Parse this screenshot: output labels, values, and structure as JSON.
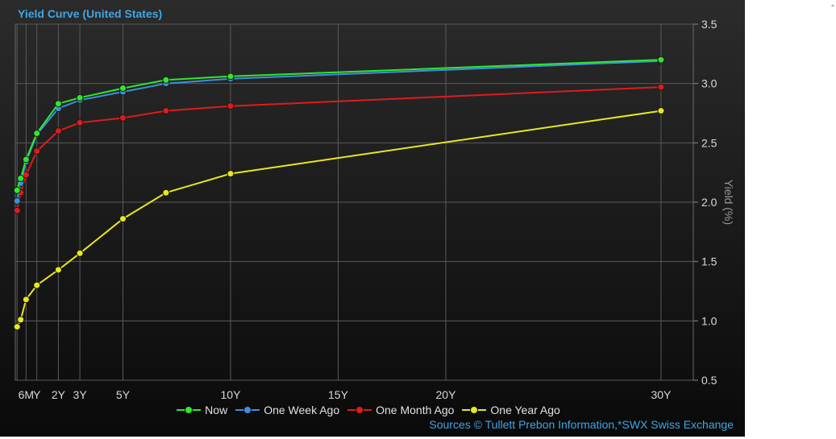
{
  "title": "Yield Curve (United States)",
  "sources": "Sources  © Tullett Prebon Information,*SWX Swiss Exchange",
  "corner_mark": "-",
  "chart_data": {
    "type": "line",
    "title": "Yield Curve (United States)",
    "xlabel": "",
    "ylabel": "Yield (%)",
    "xlim": [
      0,
      31.5
    ],
    "ylim": [
      0.5,
      3.5
    ],
    "x_ticks": [
      {
        "value": 0.5,
        "label": "6M"
      },
      {
        "value": 1,
        "label": "Y"
      },
      {
        "value": 2,
        "label": "2Y"
      },
      {
        "value": 3,
        "label": "3Y"
      },
      {
        "value": 5,
        "label": "5Y"
      },
      {
        "value": 10,
        "label": "10Y"
      },
      {
        "value": 15,
        "label": "15Y"
      },
      {
        "value": 20,
        "label": "20Y"
      },
      {
        "value": 30,
        "label": "30Y"
      }
    ],
    "x_gridlines": [
      0.083,
      0.5,
      1,
      2,
      3,
      5,
      10,
      15,
      20,
      30
    ],
    "y_ticks": [
      0.5,
      1.0,
      1.5,
      2.0,
      2.5,
      3.0,
      3.5
    ],
    "y_tick_labels": [
      "0.5",
      "1.0",
      "1.5",
      "2.0",
      "2.5",
      "3.0",
      "3.5"
    ],
    "grid": true,
    "legend_position": "bottom",
    "x": [
      0.083,
      0.25,
      0.5,
      1,
      2,
      3,
      5,
      7,
      10,
      30
    ],
    "series": [
      {
        "name": "Now",
        "color": "#2ee82e",
        "values": [
          2.1,
          2.2,
          2.36,
          2.58,
          2.83,
          2.88,
          2.96,
          3.03,
          3.06,
          3.2
        ]
      },
      {
        "name": "One Week Ago",
        "color": "#3d8fe0",
        "values": [
          2.01,
          2.16,
          2.34,
          2.57,
          2.79,
          2.86,
          2.93,
          3.0,
          3.04,
          3.19
        ]
      },
      {
        "name": "One Month Ago",
        "color": "#e01b1b",
        "values": [
          1.93,
          2.08,
          2.23,
          2.43,
          2.6,
          2.67,
          2.71,
          2.77,
          2.81,
          2.97
        ]
      },
      {
        "name": "One Year Ago",
        "color": "#e8e81e",
        "values": [
          0.95,
          1.01,
          1.18,
          1.3,
          1.43,
          1.57,
          1.86,
          2.08,
          2.24,
          2.77
        ]
      }
    ]
  }
}
